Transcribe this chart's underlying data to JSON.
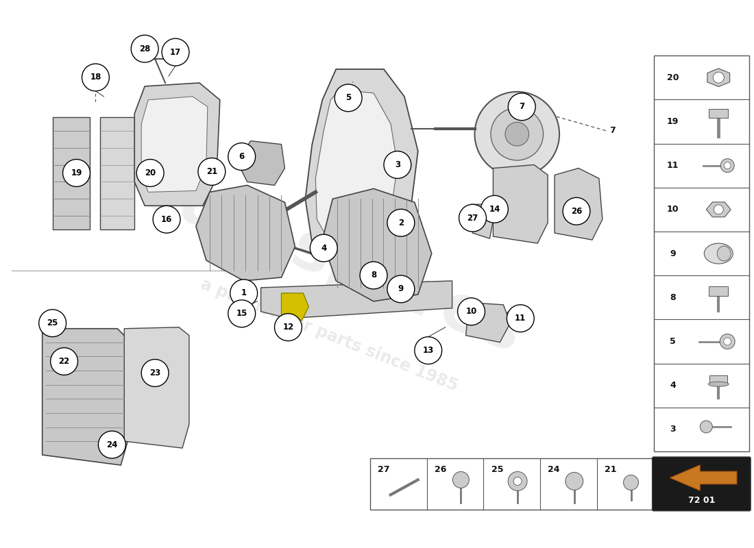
{
  "bg_color": "#ffffff",
  "watermark_text": "eurospares",
  "watermark_subtext": "a passion for parts since 1985",
  "page_num": "72 01",
  "right_panel_items": [
    20,
    19,
    11,
    10,
    9,
    8,
    5,
    4,
    3
  ],
  "bottom_panel_items": [
    27,
    26,
    25,
    24,
    21
  ]
}
